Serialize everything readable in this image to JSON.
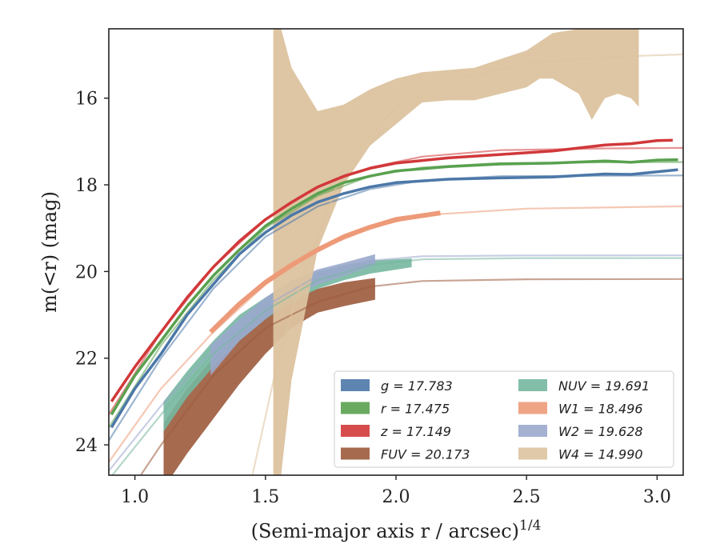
{
  "chart_data": {
    "type": "line",
    "xlabel": "(Semi-major axis r / arcsec)",
    "xlabel_sup": "1/4",
    "ylabel": "m(<r) (mag)",
    "xlim": [
      0.9,
      3.1
    ],
    "ylim": [
      24.7,
      14.4
    ],
    "y_inverted": true,
    "x_ticks": [
      1.0,
      1.5,
      2.0,
      2.5,
      3.0
    ],
    "x_tick_labels": [
      "1.0",
      "1.5",
      "2.0",
      "2.5",
      "3.0"
    ],
    "y_ticks": [
      16,
      18,
      20,
      22,
      24
    ],
    "y_tick_labels": [
      "16",
      "18",
      "20",
      "22",
      "24"
    ],
    "grid": false,
    "legend_placement": "lower-right",
    "series": [
      {
        "key": "g",
        "legend_label": "g = 17.783",
        "color": "#4c78a8",
        "data": [
          [
            0.91,
            23.6
          ],
          [
            1.0,
            22.7
          ],
          [
            1.1,
            21.9
          ],
          [
            1.2,
            21.0
          ],
          [
            1.3,
            20.3
          ],
          [
            1.4,
            19.6
          ],
          [
            1.5,
            19.1
          ],
          [
            1.6,
            18.7
          ],
          [
            1.7,
            18.4
          ],
          [
            1.8,
            18.2
          ],
          [
            1.9,
            18.05
          ],
          [
            2.0,
            17.95
          ],
          [
            2.2,
            17.87
          ],
          [
            2.4,
            17.84
          ],
          [
            2.6,
            17.82
          ],
          [
            2.8,
            17.75
          ],
          [
            2.9,
            17.76
          ],
          [
            3.0,
            17.7
          ],
          [
            3.08,
            17.65
          ]
        ],
        "model": [
          [
            0.9,
            23.9
          ],
          [
            1.1,
            22.0
          ],
          [
            1.3,
            20.4
          ],
          [
            1.5,
            19.2
          ],
          [
            1.7,
            18.5
          ],
          [
            1.9,
            18.1
          ],
          [
            2.1,
            17.9
          ],
          [
            2.4,
            17.8
          ],
          [
            2.8,
            17.79
          ],
          [
            3.1,
            17.783
          ]
        ]
      },
      {
        "key": "r",
        "legend_label": "r = 17.475",
        "color": "#59a14f",
        "data": [
          [
            0.91,
            23.3
          ],
          [
            1.0,
            22.4
          ],
          [
            1.1,
            21.6
          ],
          [
            1.2,
            20.8
          ],
          [
            1.3,
            20.1
          ],
          [
            1.4,
            19.5
          ],
          [
            1.5,
            18.95
          ],
          [
            1.6,
            18.55
          ],
          [
            1.7,
            18.2
          ],
          [
            1.8,
            17.95
          ],
          [
            1.9,
            17.8
          ],
          [
            2.0,
            17.68
          ],
          [
            2.2,
            17.58
          ],
          [
            2.4,
            17.52
          ],
          [
            2.6,
            17.5
          ],
          [
            2.8,
            17.45
          ],
          [
            2.9,
            17.48
          ],
          [
            3.0,
            17.43
          ],
          [
            3.08,
            17.42
          ]
        ],
        "model": [
          [
            0.9,
            23.6
          ],
          [
            1.1,
            21.7
          ],
          [
            1.3,
            20.2
          ],
          [
            1.5,
            19.0
          ],
          [
            1.7,
            18.25
          ],
          [
            1.9,
            17.8
          ],
          [
            2.1,
            17.6
          ],
          [
            2.4,
            17.5
          ],
          [
            2.8,
            17.48
          ],
          [
            3.1,
            17.475
          ]
        ]
      },
      {
        "key": "z",
        "legend_label": "z = 17.149",
        "color": "#d1383a",
        "data": [
          [
            0.91,
            23.0
          ],
          [
            1.0,
            22.2
          ],
          [
            1.1,
            21.4
          ],
          [
            1.2,
            20.6
          ],
          [
            1.3,
            19.9
          ],
          [
            1.4,
            19.3
          ],
          [
            1.5,
            18.8
          ],
          [
            1.6,
            18.4
          ],
          [
            1.7,
            18.05
          ],
          [
            1.8,
            17.8
          ],
          [
            1.9,
            17.62
          ],
          [
            2.0,
            17.5
          ],
          [
            2.2,
            17.38
          ],
          [
            2.4,
            17.3
          ],
          [
            2.6,
            17.22
          ],
          [
            2.7,
            17.15
          ],
          [
            2.8,
            17.08
          ],
          [
            2.9,
            17.05
          ],
          [
            3.0,
            16.98
          ],
          [
            3.06,
            16.97
          ]
        ],
        "model": [
          [
            0.9,
            23.3
          ],
          [
            1.1,
            21.4
          ],
          [
            1.3,
            19.9
          ],
          [
            1.5,
            18.8
          ],
          [
            1.7,
            18.05
          ],
          [
            1.9,
            17.6
          ],
          [
            2.1,
            17.35
          ],
          [
            2.4,
            17.2
          ],
          [
            2.8,
            17.16
          ],
          [
            3.1,
            17.149
          ]
        ]
      },
      {
        "key": "FUV",
        "legend_label": "FUV = 20.173",
        "color": "#9c5a3c",
        "band": [
          [
            1.11,
            23.5,
            25.0
          ],
          [
            1.2,
            22.7,
            24.2
          ],
          [
            1.3,
            22.0,
            23.4
          ],
          [
            1.4,
            21.4,
            22.6
          ],
          [
            1.5,
            20.9,
            21.9
          ],
          [
            1.6,
            20.6,
            21.3
          ],
          [
            1.7,
            20.4,
            20.95
          ],
          [
            1.8,
            20.25,
            20.8
          ],
          [
            1.92,
            20.15,
            20.65
          ]
        ],
        "model": [
          [
            0.9,
            25.8
          ],
          [
            1.1,
            24.0
          ],
          [
            1.3,
            22.4
          ],
          [
            1.5,
            21.3
          ],
          [
            1.7,
            20.7
          ],
          [
            1.9,
            20.35
          ],
          [
            2.1,
            20.22
          ],
          [
            2.5,
            20.18
          ],
          [
            3.1,
            20.173
          ]
        ]
      },
      {
        "key": "NUV",
        "legend_label": "NUV = 19.691",
        "color": "#76b7a0",
        "band": [
          [
            1.11,
            23.0,
            23.7
          ],
          [
            1.2,
            22.3,
            22.9
          ],
          [
            1.3,
            21.6,
            22.2
          ],
          [
            1.4,
            21.0,
            21.6
          ],
          [
            1.5,
            20.6,
            21.1
          ],
          [
            1.6,
            20.25,
            20.7
          ],
          [
            1.7,
            20.0,
            20.4
          ],
          [
            1.8,
            19.85,
            20.2
          ],
          [
            1.9,
            19.75,
            20.05
          ],
          [
            2.06,
            19.7,
            19.9
          ]
        ],
        "model": [
          [
            0.9,
            24.8
          ],
          [
            1.1,
            23.3
          ],
          [
            1.3,
            21.9
          ],
          [
            1.5,
            20.9
          ],
          [
            1.7,
            20.2
          ],
          [
            1.9,
            19.85
          ],
          [
            2.1,
            19.72
          ],
          [
            2.5,
            19.69
          ],
          [
            3.1,
            19.691
          ]
        ]
      },
      {
        "key": "W1",
        "legend_label": "W1 = 18.496",
        "color": "#ed9a78",
        "data": [
          [
            1.29,
            21.4
          ],
          [
            1.4,
            20.75
          ],
          [
            1.5,
            20.25
          ],
          [
            1.6,
            19.85
          ],
          [
            1.7,
            19.5
          ],
          [
            1.8,
            19.2
          ],
          [
            1.9,
            18.98
          ],
          [
            2.0,
            18.8
          ],
          [
            2.17,
            18.65
          ]
        ],
        "model": [
          [
            0.9,
            24.4
          ],
          [
            1.1,
            22.7
          ],
          [
            1.3,
            21.4
          ],
          [
            1.5,
            20.3
          ],
          [
            1.7,
            19.5
          ],
          [
            1.9,
            19.0
          ],
          [
            2.1,
            18.7
          ],
          [
            2.5,
            18.55
          ],
          [
            3.1,
            18.496
          ]
        ]
      },
      {
        "key": "W2",
        "legend_label": "W2 = 19.628",
        "color": "#9aa8cc",
        "band": [
          [
            1.29,
            21.7,
            22.4
          ],
          [
            1.4,
            21.1,
            21.6
          ],
          [
            1.5,
            20.6,
            21.1
          ],
          [
            1.6,
            20.2,
            20.6
          ],
          [
            1.7,
            19.95,
            20.3
          ],
          [
            1.8,
            19.8,
            20.1
          ],
          [
            1.92,
            19.6,
            19.85
          ]
        ],
        "model": [
          [
            0.9,
            24.6
          ],
          [
            1.1,
            23.1
          ],
          [
            1.3,
            21.8
          ],
          [
            1.5,
            20.8
          ],
          [
            1.7,
            20.1
          ],
          [
            1.9,
            19.75
          ],
          [
            2.1,
            19.65
          ],
          [
            2.5,
            19.63
          ],
          [
            3.1,
            19.628
          ]
        ]
      },
      {
        "key": "W4",
        "legend_label": "W4 = 14.990",
        "color": "#dcc39f",
        "band": [
          [
            1.53,
            14.4,
            24.7
          ],
          [
            1.56,
            14.4,
            24.7
          ],
          [
            1.6,
            15.3,
            22.5
          ],
          [
            1.7,
            16.3,
            19.5
          ],
          [
            1.8,
            16.15,
            18.0
          ],
          [
            1.9,
            15.8,
            17.1
          ],
          [
            2.0,
            15.55,
            16.6
          ],
          [
            2.1,
            15.4,
            16.1
          ],
          [
            2.2,
            15.35,
            16.05
          ],
          [
            2.3,
            15.3,
            16.05
          ],
          [
            2.4,
            15.1,
            15.9
          ],
          [
            2.5,
            14.9,
            15.75
          ],
          [
            2.55,
            14.7,
            15.55
          ],
          [
            2.6,
            14.5,
            15.55
          ],
          [
            2.7,
            14.4,
            15.9
          ],
          [
            2.75,
            14.4,
            16.5
          ],
          [
            2.8,
            14.4,
            16.0
          ],
          [
            2.85,
            14.4,
            15.9
          ],
          [
            2.9,
            14.4,
            16.0
          ],
          [
            2.93,
            14.4,
            16.2
          ]
        ],
        "model": [
          [
            1.45,
            24.7
          ],
          [
            1.55,
            22.0
          ],
          [
            1.65,
            20.0
          ],
          [
            1.8,
            17.6
          ],
          [
            2.0,
            16.2
          ],
          [
            2.2,
            15.6
          ],
          [
            2.5,
            15.2
          ],
          [
            2.8,
            15.05
          ],
          [
            3.1,
            14.99
          ]
        ]
      }
    ],
    "legend_columns": [
      [
        "g",
        "r",
        "z",
        "FUV"
      ],
      [
        "NUV",
        "W1",
        "W2",
        "W4"
      ]
    ]
  }
}
